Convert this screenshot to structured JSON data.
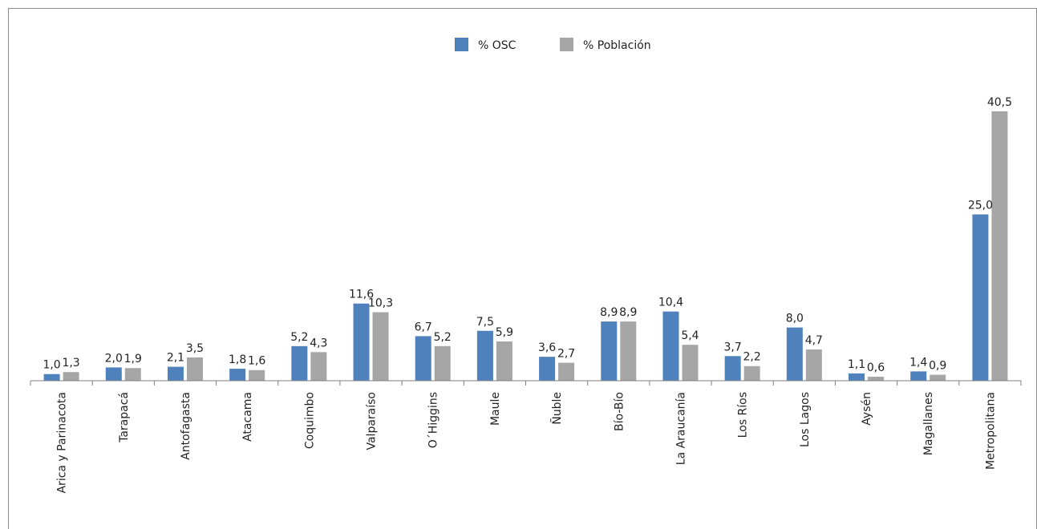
{
  "chart_data": {
    "type": "bar",
    "title": "",
    "xlabel": "",
    "ylabel": "",
    "ylim": [
      0,
      42
    ],
    "grid": false,
    "legend_position": "top-center",
    "categories": [
      "Arica y Parinacota",
      "Tarapacá",
      "Antofagasta",
      "Atacama",
      "Coquimbo",
      "Valparaíso",
      "O´Higgins",
      "Maule",
      "Ñuble",
      "Bío-Bío",
      "La Araucanía",
      "Los Ríos",
      "Los Lagos",
      "Aysén",
      "Magallanes",
      "Metropolitana"
    ],
    "series": [
      {
        "name": "% OSC",
        "color": "#4f81bd",
        "values": [
          1.0,
          2.0,
          2.1,
          1.8,
          5.2,
          11.6,
          6.7,
          7.5,
          3.6,
          8.9,
          10.4,
          3.7,
          8.0,
          1.1,
          1.4,
          25.0
        ],
        "labels": [
          "1,0",
          "2,0",
          "2,1",
          "1,8",
          "5,2",
          "11,6",
          "6,7",
          "7,5",
          "3,6",
          "8,9",
          "10,4",
          "3,7",
          "8,0",
          "1,1",
          "1,4",
          "25,0"
        ]
      },
      {
        "name": "% Población",
        "color": "#a6a6a6",
        "values": [
          1.3,
          1.9,
          3.5,
          1.6,
          4.3,
          10.3,
          5.2,
          5.9,
          2.7,
          8.9,
          5.4,
          2.2,
          4.7,
          0.6,
          0.9,
          40.5
        ],
        "labels": [
          "1,3",
          "1,9",
          "3,5",
          "1,6",
          "4,3",
          "10,3",
          "5,2",
          "5,9",
          "2,7",
          "8,9",
          "5,4",
          "2,2",
          "4,7",
          "0,6",
          "0,9",
          "40,5"
        ]
      }
    ]
  }
}
